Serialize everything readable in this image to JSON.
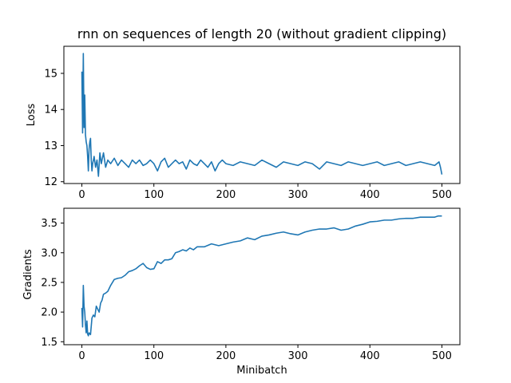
{
  "title": "rnn on sequences of length 20 (without gradient clipping)",
  "colors": {
    "line": "#1f77b4",
    "axes": "#000000",
    "background": "#ffffff"
  },
  "chart_data": [
    {
      "type": "line",
      "title": "rnn on sequences of length 20 (without gradient clipping)",
      "xlabel": "",
      "ylabel": "Loss",
      "xlim": [
        -25,
        525
      ],
      "ylim": [
        11.95,
        15.75
      ],
      "xticks": [
        0,
        100,
        200,
        300,
        400,
        500
      ],
      "yticks": [
        12,
        13,
        14,
        15
      ],
      "grid": false,
      "series": [
        {
          "x": [
            0,
            1,
            2,
            3,
            4,
            5,
            6,
            7,
            8,
            9,
            10,
            11,
            12,
            13,
            14,
            15,
            17,
            19,
            21,
            23,
            25,
            27,
            30,
            33,
            36,
            40,
            45,
            50,
            55,
            60,
            65,
            70,
            75,
            80,
            85,
            90,
            95,
            100,
            105,
            110,
            115,
            120,
            125,
            130,
            135,
            140,
            145,
            150,
            155,
            160,
            165,
            170,
            175,
            180,
            185,
            190,
            195,
            200,
            210,
            220,
            230,
            240,
            250,
            260,
            270,
            280,
            290,
            300,
            310,
            320,
            330,
            340,
            350,
            360,
            370,
            380,
            390,
            400,
            410,
            420,
            430,
            440,
            450,
            460,
            470,
            480,
            490,
            496,
            498,
            500
          ],
          "y": [
            15.05,
            13.35,
            15.55,
            13.5,
            14.4,
            13.3,
            13.1,
            13.0,
            12.7,
            12.3,
            12.9,
            13.1,
            13.2,
            12.6,
            12.3,
            12.5,
            12.7,
            12.4,
            12.6,
            12.15,
            12.8,
            12.5,
            12.8,
            12.4,
            12.6,
            12.5,
            12.65,
            12.45,
            12.6,
            12.5,
            12.4,
            12.6,
            12.5,
            12.6,
            12.45,
            12.5,
            12.6,
            12.5,
            12.3,
            12.55,
            12.65,
            12.4,
            12.5,
            12.6,
            12.5,
            12.55,
            12.35,
            12.6,
            12.5,
            12.45,
            12.6,
            12.5,
            12.4,
            12.55,
            12.3,
            12.5,
            12.6,
            12.5,
            12.45,
            12.55,
            12.5,
            12.45,
            12.6,
            12.5,
            12.4,
            12.55,
            12.5,
            12.45,
            12.55,
            12.5,
            12.35,
            12.55,
            12.5,
            12.45,
            12.55,
            12.5,
            12.45,
            12.5,
            12.55,
            12.45,
            12.5,
            12.55,
            12.45,
            12.5,
            12.55,
            12.5,
            12.45,
            12.55,
            12.4,
            12.2
          ]
        }
      ]
    },
    {
      "type": "line",
      "title": "",
      "xlabel": "Minibatch",
      "ylabel": "Gradients",
      "xlim": [
        -25,
        525
      ],
      "ylim": [
        1.45,
        3.75
      ],
      "xticks": [
        0,
        100,
        200,
        300,
        400,
        500
      ],
      "yticks": [
        1.5,
        2.0,
        2.5,
        3.0,
        3.5
      ],
      "grid": false,
      "series": [
        {
          "x": [
            0,
            1,
            2,
            3,
            4,
            5,
            6,
            7,
            8,
            9,
            10,
            12,
            14,
            16,
            18,
            20,
            22,
            24,
            26,
            28,
            30,
            33,
            36,
            40,
            45,
            50,
            55,
            60,
            65,
            70,
            75,
            80,
            85,
            90,
            95,
            100,
            105,
            110,
            115,
            120,
            125,
            130,
            135,
            140,
            145,
            150,
            155,
            160,
            170,
            180,
            190,
            200,
            210,
            220,
            230,
            240,
            250,
            260,
            270,
            280,
            290,
            300,
            310,
            320,
            330,
            340,
            350,
            360,
            370,
            380,
            390,
            400,
            410,
            420,
            430,
            440,
            450,
            460,
            470,
            480,
            490,
            495,
            500
          ],
          "y": [
            2.07,
            1.75,
            2.45,
            2.1,
            2.0,
            1.78,
            1.65,
            1.85,
            1.63,
            1.6,
            1.65,
            1.62,
            1.9,
            1.95,
            1.92,
            2.1,
            2.05,
            2.0,
            2.15,
            2.2,
            2.3,
            2.32,
            2.35,
            2.45,
            2.55,
            2.57,
            2.58,
            2.62,
            2.68,
            2.7,
            2.73,
            2.78,
            2.82,
            2.75,
            2.72,
            2.73,
            2.85,
            2.82,
            2.88,
            2.88,
            2.9,
            3.0,
            3.02,
            3.05,
            3.03,
            3.08,
            3.05,
            3.1,
            3.1,
            3.15,
            3.12,
            3.15,
            3.18,
            3.2,
            3.25,
            3.22,
            3.28,
            3.3,
            3.33,
            3.35,
            3.32,
            3.3,
            3.35,
            3.38,
            3.4,
            3.4,
            3.42,
            3.38,
            3.4,
            3.45,
            3.48,
            3.52,
            3.53,
            3.55,
            3.55,
            3.57,
            3.58,
            3.58,
            3.6,
            3.6,
            3.6,
            3.62,
            3.62
          ]
        }
      ]
    }
  ]
}
